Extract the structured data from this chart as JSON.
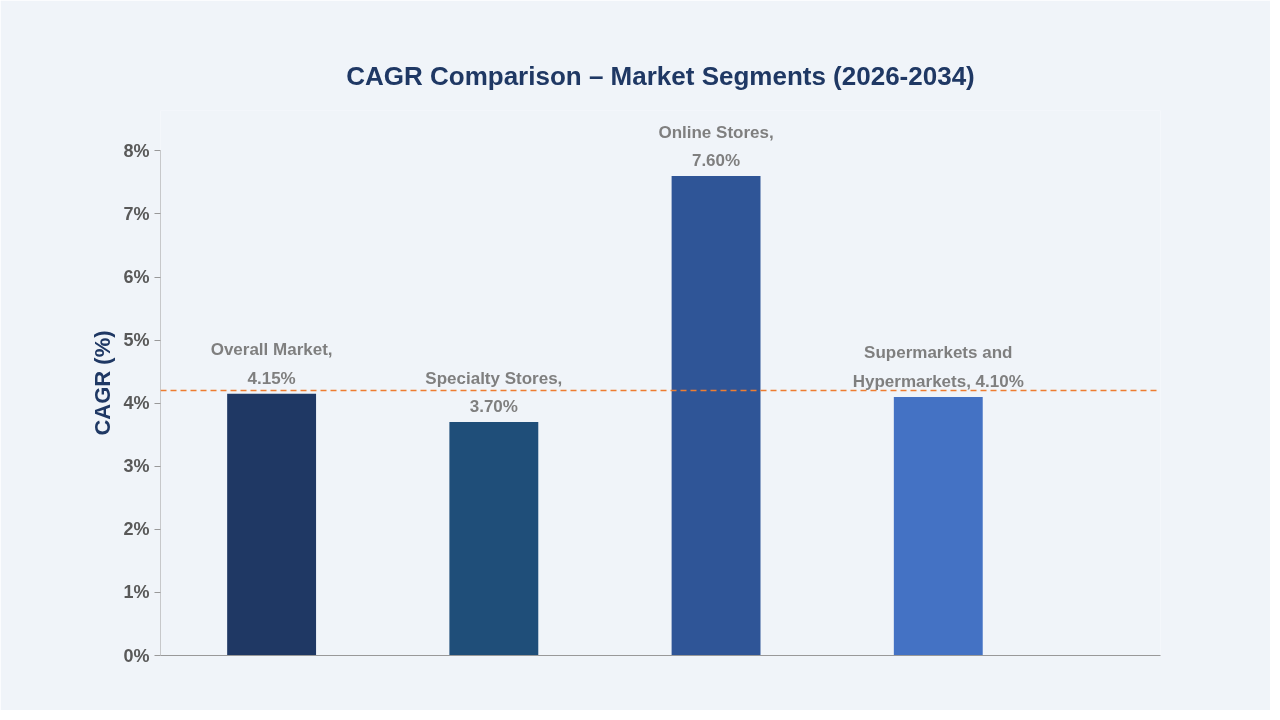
{
  "chart_data": {
    "type": "bar",
    "title": "CAGR Comparison – Market Segments (2026-2034)",
    "ylabel": "CAGR (%)",
    "categories": [
      null,
      null,
      null,
      null
    ],
    "values": [
      4.15,
      3.7,
      7.6,
      4.1
    ],
    "colors": [
      "#1f3864",
      "#1f4e79",
      "#2f5597",
      "#4472c4"
    ],
    "value_labels": [
      "Overall Market,\n4.15%",
      "Specialty Stores,\n3.70%",
      "Online Stores,\n7.60%",
      "Supermarkets and\nHypermarkets, 4.10%"
    ],
    "ylim": [
      0,
      8
    ],
    "yticks": [
      {
        "value": 0,
        "label": "0%"
      },
      {
        "value": 1,
        "label": "1%"
      },
      {
        "value": 2,
        "label": "2%"
      },
      {
        "value": 3,
        "label": "3%"
      },
      {
        "value": 4,
        "label": "4%"
      },
      {
        "value": 5,
        "label": "5%"
      },
      {
        "value": 6,
        "label": "6%"
      },
      {
        "value": 7,
        "label": "7%"
      },
      {
        "value": 8,
        "label": "8%"
      }
    ],
    "ref_lines": [
      {
        "axis": "y",
        "value": 4.2,
        "color": "#ed7d31",
        "line_style": "dashed"
      }
    ],
    "grid": false
  }
}
